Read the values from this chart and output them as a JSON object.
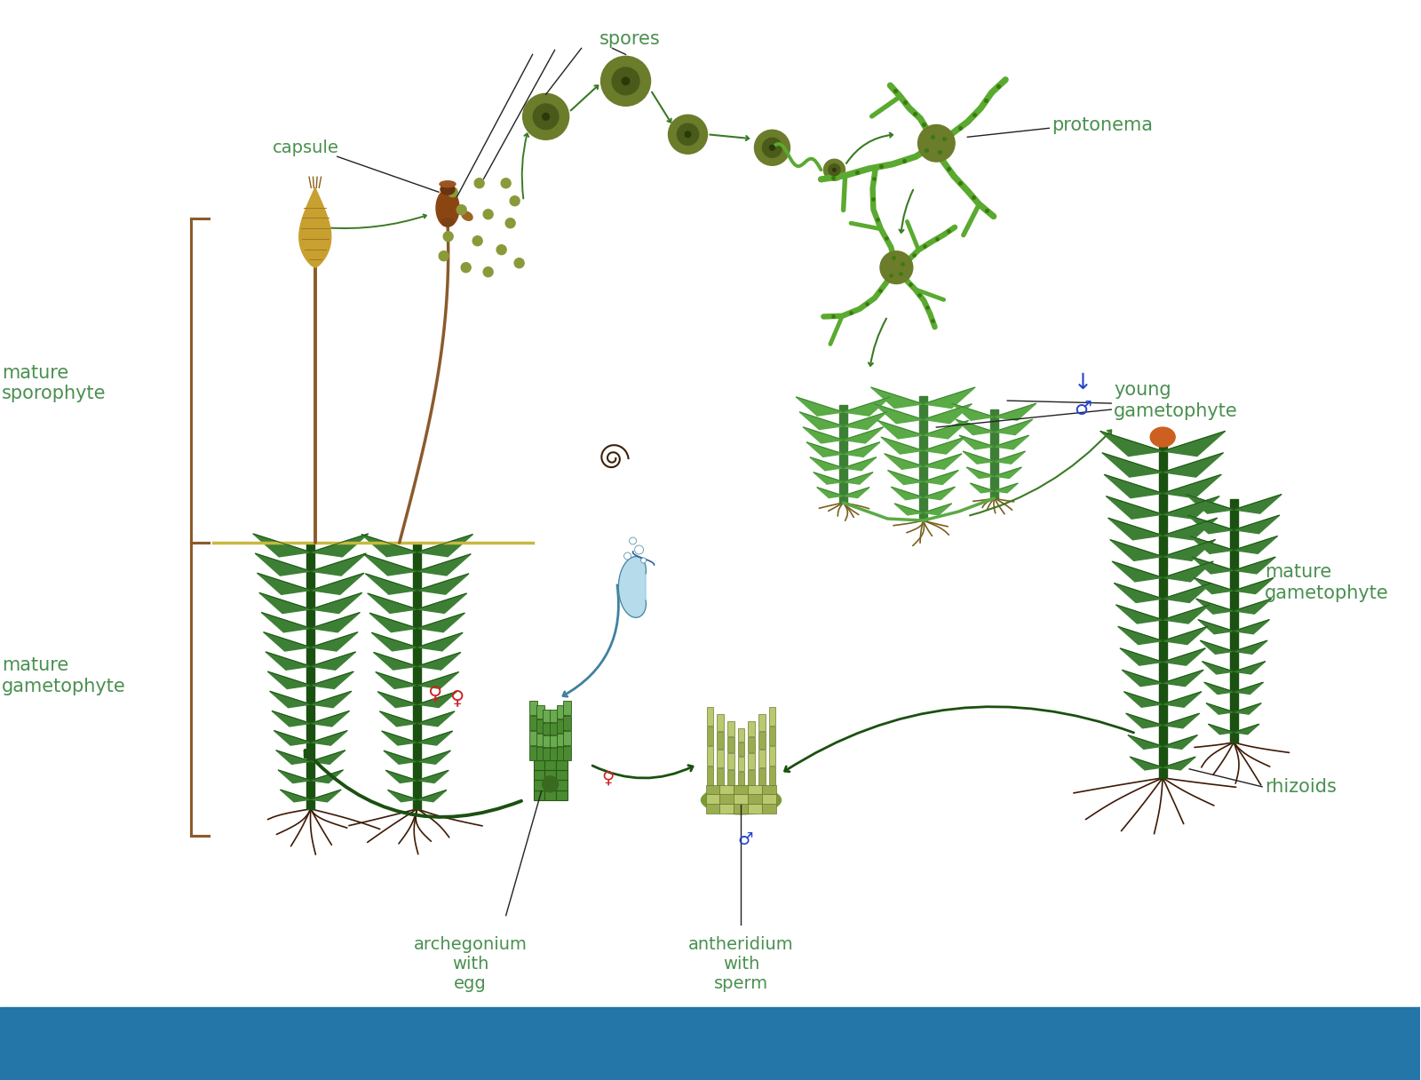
{
  "background_color": "#ffffff",
  "text_color": "#4a9050",
  "brown_color": "#8B5A2B",
  "dark_green": "#2d6a1b",
  "arrow_green": "#3a7a25",
  "dreamstime_blue": "#2475a8",
  "spore_color": "#6b7c2a",
  "spore_outline": "#4a5a1a",
  "protonema_green": "#5aaa30",
  "protonema_dark": "#3a7a10",
  "moss_green": "#3d8035",
  "moss_dark": "#1a5010",
  "moss_light": "#5aaa45",
  "calyptra_gold": "#c8a030",
  "calyptra_light": "#e8c050",
  "capsule_brown": "#8B4513",
  "root_brown": "#3d1a05",
  "anth_olive": "#8aaa40",
  "anth_dark": "#5a7a20",
  "arch_green": "#4a8a30",
  "arch_dark": "#2a5a10",
  "water_blue": "#90c8e0",
  "water_dark": "#4080a0",
  "red_symbol": "#cc2222",
  "blue_symbol": "#2244cc",
  "labels": {
    "spores": "spores",
    "capsule": "capsule",
    "protonema": "protonema",
    "mature_sporophyte": "mature\nsporophyte",
    "mature_gametophyte_left": "mature\ngametophyte",
    "mature_gametophyte_right": "mature\ngametophyte",
    "young_gametophyte": "young\ngametophyte",
    "archegonium": "archegonium\nwith\negg",
    "antheridium": "antheridium\nwith\nsperm",
    "rhizoids": "rhizoids"
  },
  "figsize": [
    16,
    12.16
  ],
  "dpi": 100
}
